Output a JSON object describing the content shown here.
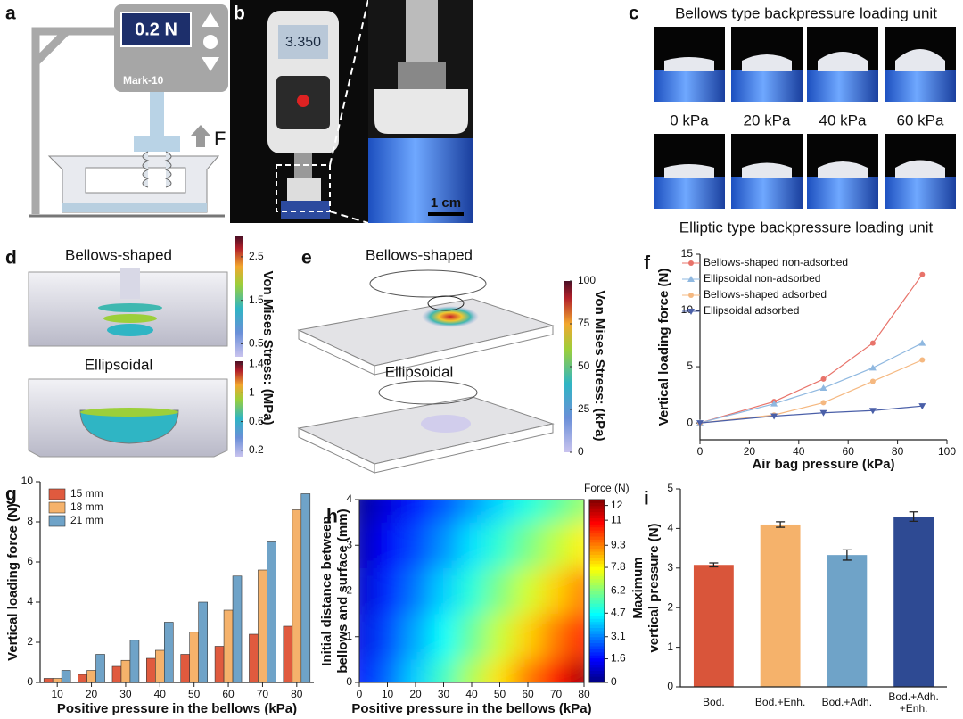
{
  "figure": {
    "a": {
      "label": "a",
      "display": "0.2 N",
      "brand": "Mark-10",
      "force": "F"
    },
    "b": {
      "label": "b",
      "reading": "3.350",
      "scale": "1 cm"
    },
    "c": {
      "label": "c",
      "top_title": "Bellows type backpressure loading unit",
      "pressures": [
        "0 kPa",
        "20 kPa",
        "40 kPa",
        "60 kPa"
      ],
      "bottom_title": "Elliptic type backpressure loading unit"
    },
    "d": {
      "label": "d",
      "top": "Bellows-shaped",
      "bottom": "Ellipsoidal",
      "colorbar_label": "Von Mises Stress: (MPa)",
      "top_lim": [
        0.2,
        2.97
      ],
      "top_ticks": [
        2.5,
        1.5,
        0.5
      ],
      "bottom_lim": [
        0.11,
        1.44
      ],
      "bottom_ticks": [
        1.4,
        1,
        0.6,
        0.2
      ]
    },
    "e": {
      "label": "e",
      "top": "Bellows-shaped",
      "bottom": "Ellipsoidal",
      "colorbar_label": "Von Mises Stress: (kPa)",
      "lim": [
        0,
        100
      ],
      "ticks": [
        100,
        75,
        50,
        25,
        0
      ]
    }
  },
  "chart_data": [
    {
      "type": "line",
      "label": "f",
      "x": [
        0,
        30,
        50,
        70,
        90
      ],
      "series": [
        {
          "name": "Bellows-shaped non-adsorbed",
          "color": "#e8736a",
          "values": [
            0,
            1.9,
            3.9,
            7.1,
            13.2
          ]
        },
        {
          "name": "Ellipsoidal non-adsorbed",
          "color": "#8fb8e0",
          "values": [
            0,
            1.7,
            3.1,
            4.9,
            7.1
          ]
        },
        {
          "name": "Bellows-shaped adsorbed",
          "color": "#f5b880",
          "values": [
            0,
            0.7,
            1.8,
            3.7,
            5.6
          ]
        },
        {
          "name": "Ellipsoidal adsorbed",
          "color": "#4a5fa8",
          "values": [
            0,
            0.6,
            0.9,
            1.1,
            1.5
          ]
        }
      ],
      "xlim": [
        0,
        100
      ],
      "xticks": [
        0,
        20,
        40,
        60,
        80,
        100
      ],
      "ylim": [
        -1.5,
        15
      ],
      "yticks": [
        0,
        5,
        10,
        15
      ],
      "xlabel": "Air bag pressure (kPa)",
      "ylabel": [
        "Vertical loading force (N)"
      ],
      "legend": "upper left"
    },
    {
      "type": "bar",
      "label": "g",
      "categories": [
        "10",
        "20",
        "30",
        "40",
        "50",
        "60",
        "70",
        "80"
      ],
      "series": [
        {
          "name": "15 mm",
          "color": "#e05a3e",
          "values": [
            0.2,
            0.4,
            0.8,
            1.2,
            1.4,
            1.8,
            2.4,
            2.8
          ]
        },
        {
          "name": "18 mm",
          "color": "#f5b26b",
          "values": [
            0.2,
            0.6,
            1.1,
            1.6,
            2.5,
            3.6,
            5.6,
            8.6
          ]
        },
        {
          "name": "21 mm",
          "color": "#6fa3c8",
          "values": [
            0.6,
            1.4,
            2.1,
            3.0,
            4.0,
            5.3,
            7.0,
            9.4
          ]
        }
      ],
      "ylim": [
        0,
        10
      ],
      "yticks": [
        0,
        2,
        4,
        6,
        8,
        10
      ],
      "xlabel": "Positive pressure in the bellows (kPa)",
      "ylabel": [
        "Vertical loading force (N)"
      ],
      "legend": "upper left"
    },
    {
      "type": "contour",
      "label": "h",
      "x": [
        0,
        10,
        20,
        30,
        40,
        50,
        60,
        70,
        80
      ],
      "y": [
        0,
        1,
        2,
        3,
        4
      ],
      "z": [
        [
          1.5,
          2.8,
          4.1,
          5.4,
          6.8,
          8.1,
          9.4,
          10.7,
          12.0
        ],
        [
          1.2,
          2.4,
          3.6,
          4.7,
          5.9,
          7.1,
          8.3,
          9.4,
          10.6
        ],
        [
          0.9,
          2.0,
          3.0,
          4.1,
          5.1,
          6.2,
          7.2,
          8.3,
          9.3
        ],
        [
          0.6,
          1.5,
          2.4,
          3.3,
          4.3,
          5.2,
          6.1,
          7.0,
          7.9
        ],
        [
          0.3,
          1.1,
          1.9,
          2.6,
          3.4,
          4.2,
          5.0,
          5.7,
          6.5
        ]
      ],
      "xlim": [
        0,
        80
      ],
      "xticks": [
        0,
        10,
        20,
        30,
        40,
        50,
        60,
        70,
        80
      ],
      "ylim": [
        0,
        4
      ],
      "yticks": [
        0,
        1,
        2,
        3,
        4
      ],
      "zlim": [
        0,
        12.4
      ],
      "zticks": [
        12,
        11,
        9.3,
        7.8,
        6.2,
        4.7,
        3.1,
        1.6,
        0
      ],
      "colorbar_label": "Force (N)",
      "xlabel": "Positive pressure in the bellows (kPa)",
      "ylabel": [
        "Initial distance between",
        "bellows and surface (mm)"
      ]
    },
    {
      "type": "errorbar",
      "label": "i",
      "categories": [
        "Bod.",
        "Bod.+Enh.",
        "Bod.+Adh.",
        [
          "Bod.+Adh.",
          "+Enh."
        ]
      ],
      "values": [
        3.08,
        4.1,
        3.33,
        4.3
      ],
      "errors": [
        0.05,
        0.07,
        0.13,
        0.12
      ],
      "colors": [
        "#d9553a",
        "#f5b26b",
        "#6fa3c8",
        "#2e4a93"
      ],
      "ylim": [
        0,
        5
      ],
      "yticks": [
        0,
        1,
        2,
        3,
        4,
        5
      ],
      "ylabel": [
        "Maximum",
        "vertical pressure (N)"
      ]
    }
  ]
}
